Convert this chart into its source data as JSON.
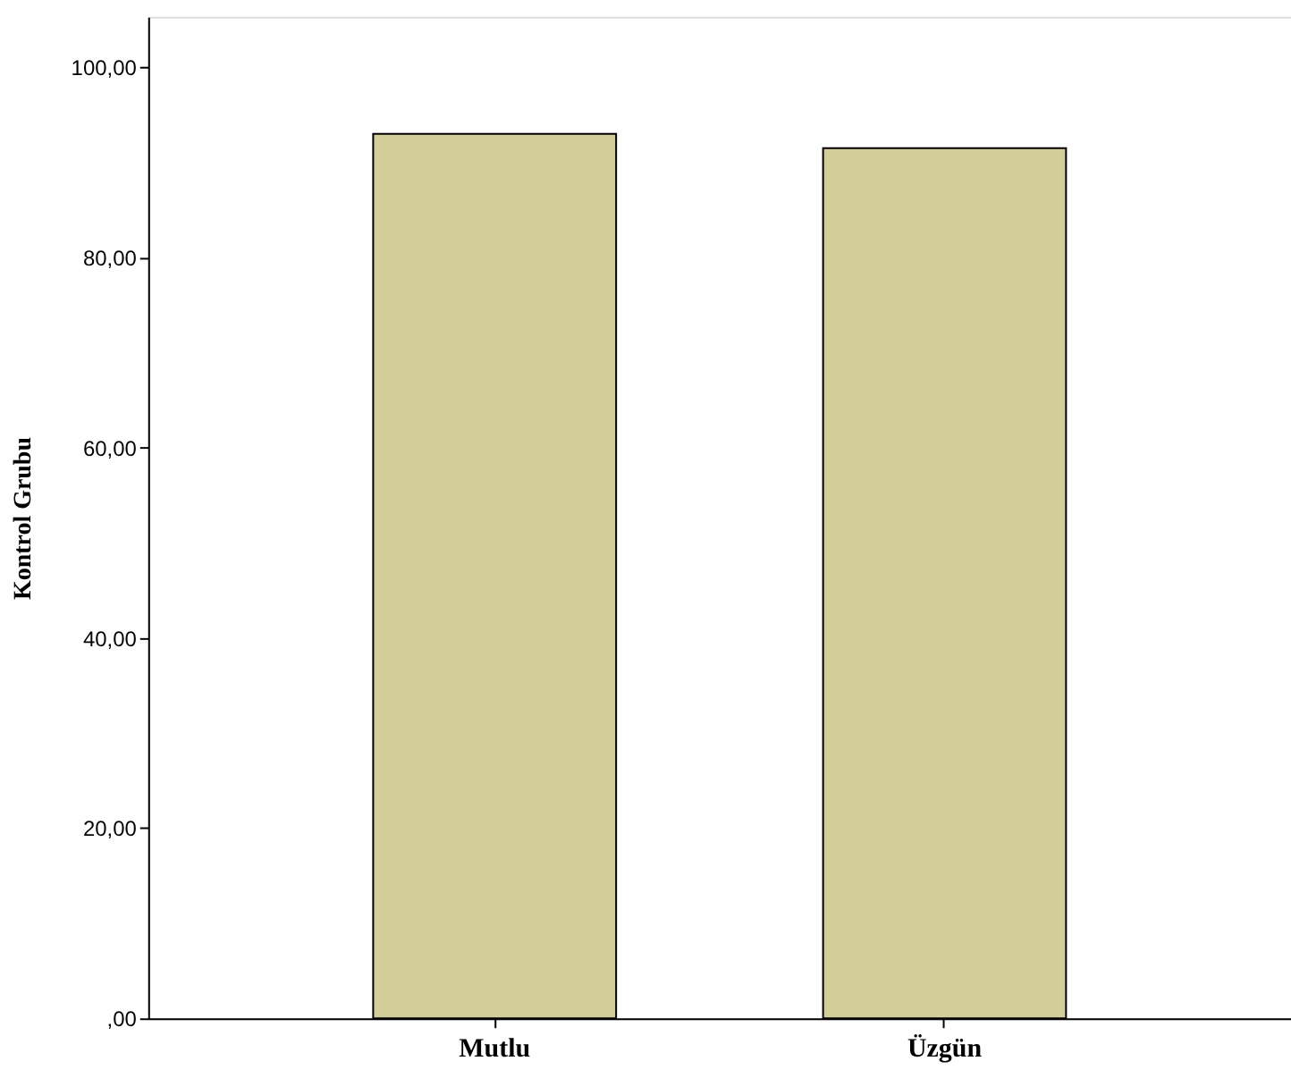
{
  "chart_data": {
    "type": "bar",
    "ylabel": "Kontrol Grubu",
    "categories": [
      "Mutlu",
      "Üzgün"
    ],
    "series": [
      {
        "color": "#d3ce97",
        "values": [
          93.0,
          91.5
        ]
      }
    ],
    "ylim": [
      0,
      105.3
    ],
    "yticks": [
      {
        "value": 0,
        "label": ",00"
      },
      {
        "value": 20,
        "label": "20,00"
      },
      {
        "value": 40,
        "label": "40,00"
      },
      {
        "value": 60,
        "label": "60,00"
      },
      {
        "value": 80,
        "label": "80,00"
      },
      {
        "value": 100,
        "label": "100,00"
      }
    ],
    "grid": false,
    "legend": false
  }
}
